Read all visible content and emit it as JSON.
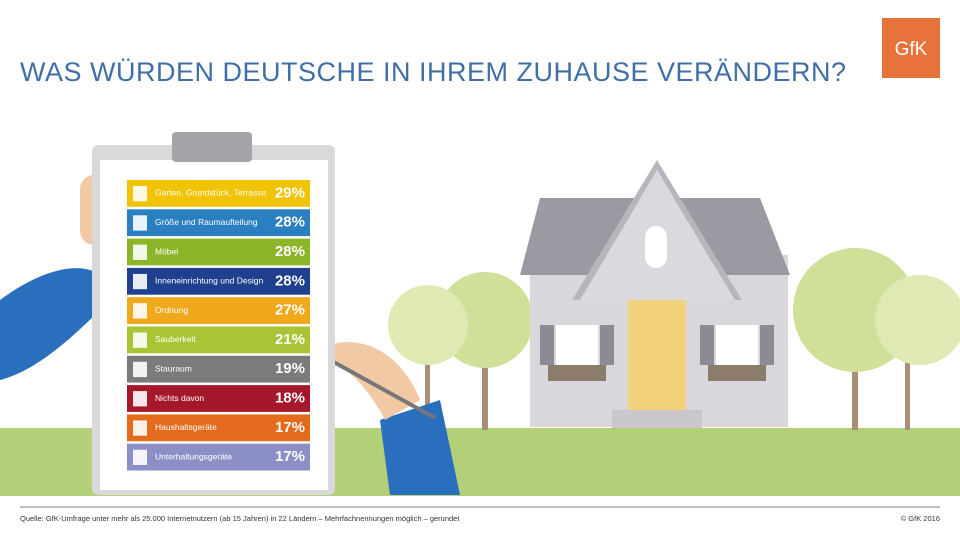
{
  "header": {
    "title": "WAS WÜRDEN DEUTSCHE IN IHREM ZUHAUSE VERÄNDERN?",
    "logo": "GfK"
  },
  "items": [
    {
      "label": "Garten, Grundstück, Terrasse",
      "value": "29%",
      "color": "#f2c300"
    },
    {
      "label": "Größe und Raumaufteilung",
      "value": "28%",
      "color": "#2a7fc1"
    },
    {
      "label": "Möbel",
      "value": "28%",
      "color": "#8db52a"
    },
    {
      "label": "Inneneinrichtung und Design",
      "value": "28%",
      "color": "#1f3f8f"
    },
    {
      "label": "Ordnung",
      "value": "27%",
      "color": "#f0a81c"
    },
    {
      "label": "Sauberkeit",
      "value": "21%",
      "color": "#a8c536"
    },
    {
      "label": "Stauraum",
      "value": "19%",
      "color": "#7d7a7a"
    },
    {
      "label": "Nichts davon",
      "value": "18%",
      "color": "#a5182a"
    },
    {
      "label": "Haushaltsgeräte",
      "value": "17%",
      "color": "#e46a1c"
    },
    {
      "label": "Unterhaltungsgeräte",
      "value": "17%",
      "color": "#8c8fc6"
    }
  ],
  "footer": {
    "source": "Quelle: GfK-Umfrage unter mehr als 25.000 Internetnutzern (ab 15 Jahren) in 22 Ländern – Mehrfachnennungen möglich – gerundet",
    "copyright": "© GfK 2016"
  }
}
